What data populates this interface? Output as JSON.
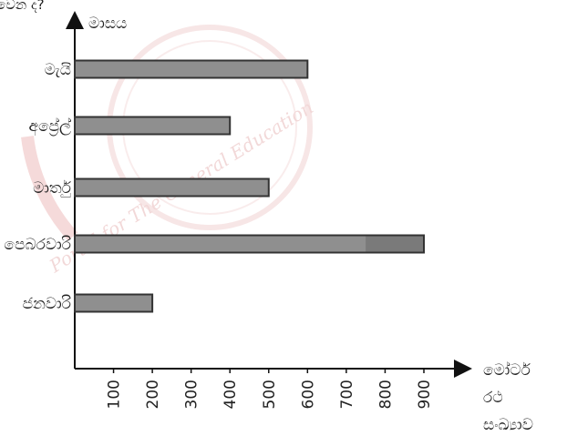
{
  "chart_data": {
    "type": "bar",
    "orientation": "horizontal",
    "title": "",
    "top_fragment": "වෙන ද?",
    "ylabel": "මාසය",
    "xlabel": [
      "මෝටර්",
      "රථ",
      "සංඛ්‍යාව"
    ],
    "categories": [
      "ජනවාරි",
      "පෙබරවාරි",
      "මාර්තු",
      "අප්‍රේල්",
      "මැයි"
    ],
    "values": [
      200,
      900,
      500,
      400,
      600
    ],
    "xticks": [
      100,
      200,
      300,
      400,
      500,
      600,
      700,
      800,
      900
    ],
    "xlim": [
      0,
      900
    ],
    "grid": false,
    "bar_color": "#8f8f8f",
    "bar_border": "#333333"
  },
  "watermark": {
    "text": "Portal for The General Education",
    "color": "#e8b9b9"
  }
}
